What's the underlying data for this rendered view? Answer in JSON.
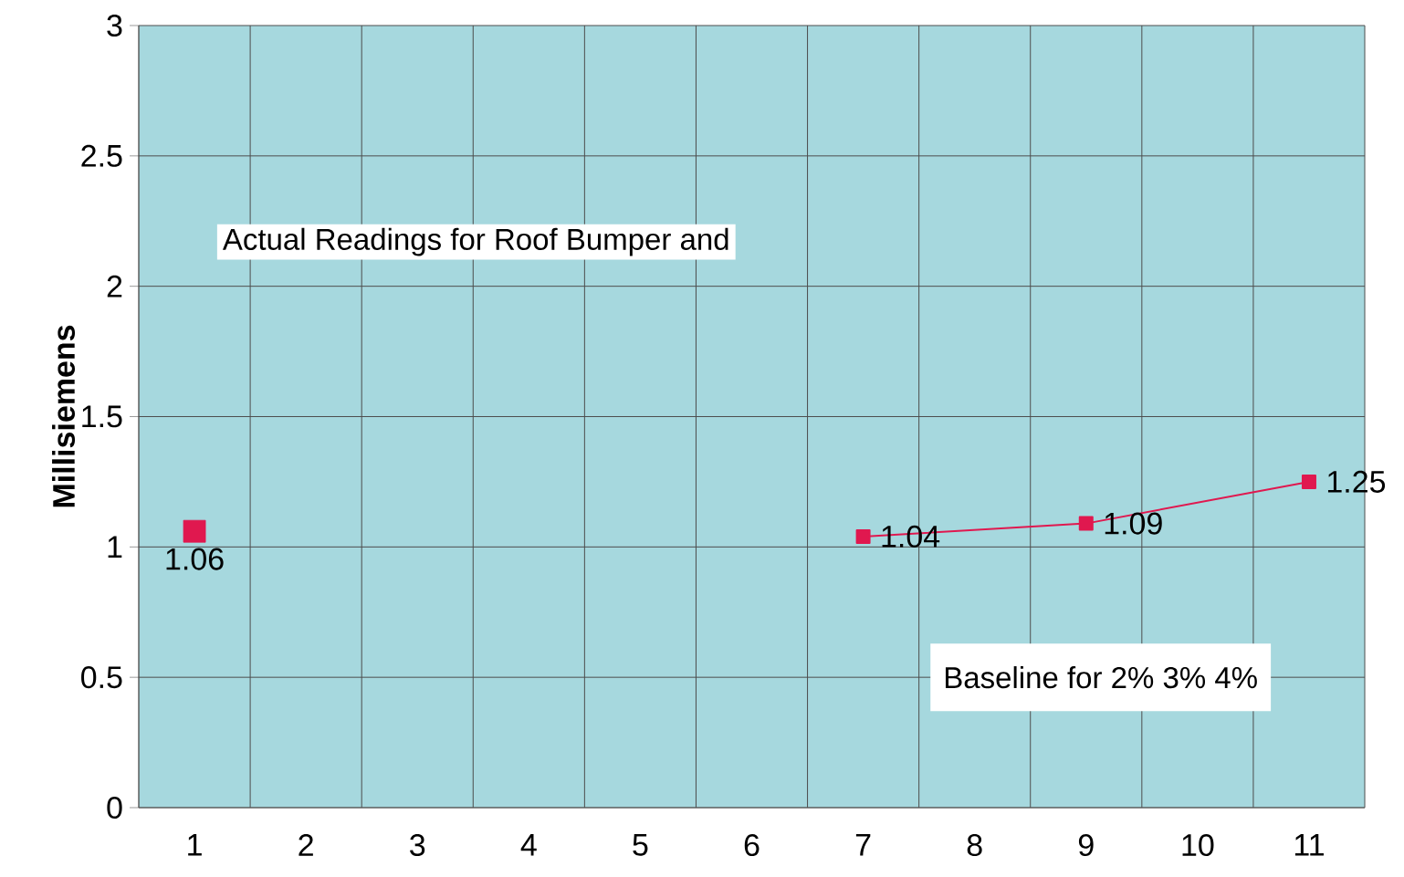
{
  "chart_data": {
    "type": "line",
    "ylabel": "Millisiemens",
    "categories": [
      "1",
      "2",
      "3",
      "4",
      "5",
      "6",
      "7",
      "8",
      "9",
      "10",
      "11"
    ],
    "series": [
      {
        "type": "scatter",
        "color": "#e0184f",
        "values": [
          1.06,
          null,
          null,
          null,
          null,
          null,
          null,
          null,
          null,
          null,
          null
        ]
      },
      {
        "color": "#e0184f",
        "values": [
          null,
          null,
          null,
          null,
          null,
          null,
          1.04,
          null,
          1.09,
          null,
          1.25
        ]
      }
    ],
    "ylim": [
      0,
      3
    ],
    "yticks": [
      0,
      0.5,
      1,
      1.5,
      2,
      2.5,
      3
    ],
    "grid": true,
    "marker": "square",
    "data_labels": true,
    "annotations": [
      "Actual Readings for Roof Bumper and",
      "Baseline for 2% 3% 4%"
    ]
  }
}
